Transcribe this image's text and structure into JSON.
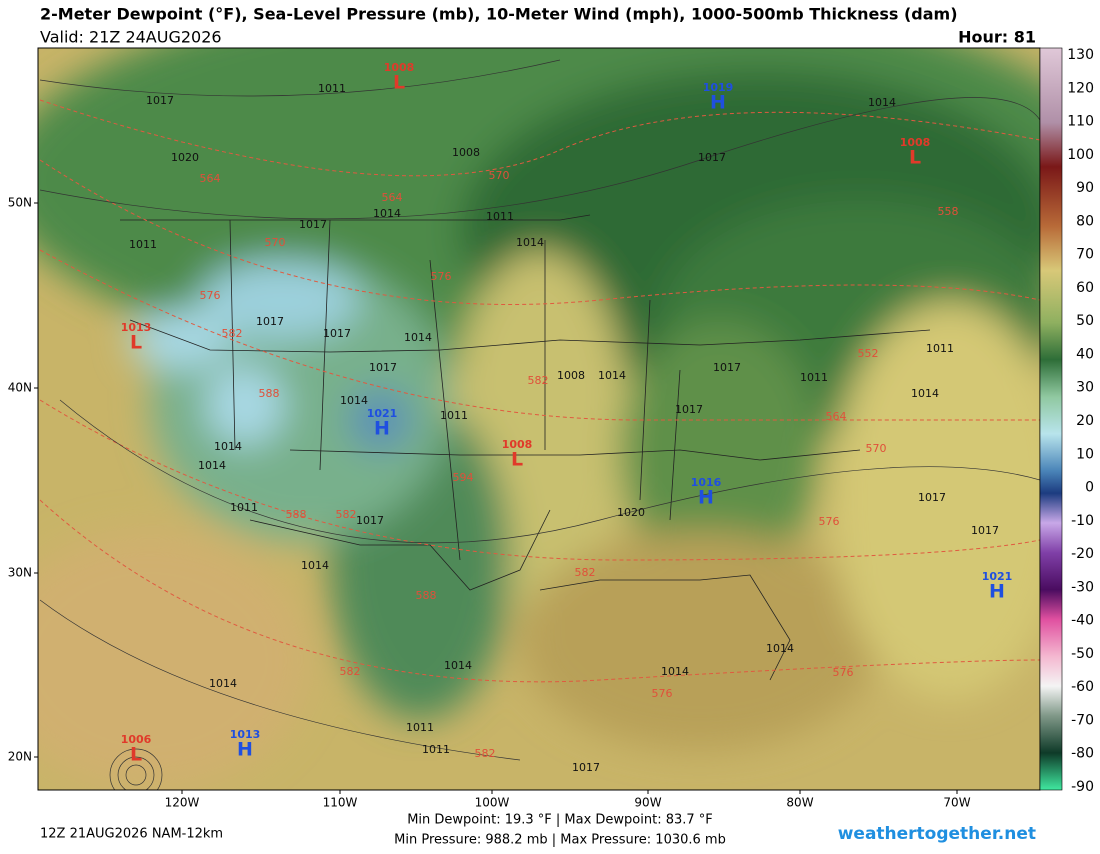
{
  "header": {
    "title": "2-Meter Dewpoint (°F), Sea-Level Pressure (mb), 10-Meter Wind (mph), 1000-500mb Thickness (dam)",
    "valid": "Valid: 21Z 24AUG2026",
    "hour": "Hour: 81"
  },
  "map": {
    "lat_labels": [
      "50N",
      "40N",
      "30N",
      "20N"
    ],
    "lon_labels": [
      "120W",
      "110W",
      "100W",
      "90W",
      "80W",
      "70W"
    ],
    "centers": [
      {
        "letter": "L",
        "value": "1008"
      },
      {
        "letter": "H",
        "value": "1019"
      },
      {
        "letter": "L",
        "value": "1008"
      },
      {
        "letter": "L",
        "value": "1013"
      },
      {
        "letter": "H",
        "value": "1021"
      },
      {
        "letter": "L",
        "value": "1008"
      },
      {
        "letter": "H",
        "value": "1016"
      },
      {
        "letter": "H",
        "value": "1021"
      },
      {
        "letter": "L",
        "value": "1006"
      },
      {
        "letter": "H",
        "value": "1013"
      }
    ],
    "isobar_labels": [
      "1017",
      "1011",
      "1020",
      "1008",
      "1014",
      "1011",
      "1017",
      "1011",
      "1014",
      "1017",
      "1014",
      "1017",
      "1017",
      "1014",
      "1017",
      "1011",
      "1014",
      "1008",
      "1014",
      "1017",
      "1017",
      "1014",
      "1011",
      "1011",
      "1014",
      "1014",
      "1011",
      "1017",
      "1020",
      "1017",
      "1017",
      "1014",
      "1014",
      "1014",
      "1014",
      "1017",
      "1011",
      "1011",
      "1014"
    ],
    "thickness_labels": [
      "564",
      "564",
      "570",
      "570",
      "576",
      "576",
      "582",
      "588",
      "594",
      "582",
      "588",
      "582",
      "588",
      "582",
      "582",
      "552",
      "564",
      "570",
      "576",
      "576",
      "576",
      "558",
      "582"
    ]
  },
  "colorbar": {
    "labels": [
      "130",
      "120",
      "110",
      "100",
      "90",
      "80",
      "70",
      "60",
      "50",
      "40",
      "30",
      "20",
      "10",
      "0",
      "-10",
      "-20",
      "-30",
      "-40",
      "-50",
      "-60",
      "-70",
      "-80",
      "-90"
    ]
  },
  "footer": {
    "run": "12Z 21AUG2026 NAM-12km",
    "stats_1": "Min Dewpoint:  19.3 °F | Max Dewpoint:  83.7 °F",
    "stats_2": "Min Pressure: 988.2 mb | Max Pressure: 1030.6 mb",
    "site": "weathertogether.net"
  }
}
